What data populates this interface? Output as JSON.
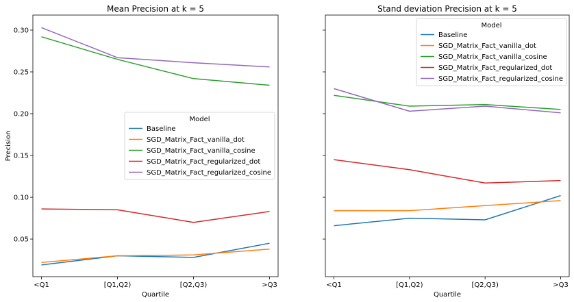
{
  "chart_data": [
    {
      "type": "line",
      "title": "Mean Precision at k = 5",
      "xlabel": "Quartile",
      "ylabel": "Precision",
      "categories": [
        "<Q1",
        "[Q1,Q2)",
        "[Q2,Q3)",
        ">Q3"
      ],
      "ylim": [
        0.005,
        0.318
      ],
      "yticks": [
        0.05,
        0.1,
        0.15,
        0.2,
        0.25,
        0.3
      ],
      "ytick_labels": [
        "0.05",
        "0.10",
        "0.15",
        "0.20",
        "0.25",
        "0.30"
      ],
      "grid": false,
      "legend": {
        "title": "Model",
        "placement": "center-right"
      },
      "series": [
        {
          "name": "Baseline",
          "color": "#1f77b4",
          "values": [
            0.019,
            0.03,
            0.028,
            0.045
          ]
        },
        {
          "name": "SGD_Matrix_Fact_vanilla_dot",
          "color": "#ff7f0e",
          "values": [
            0.022,
            0.03,
            0.031,
            0.038
          ]
        },
        {
          "name": "SGD_Matrix_Fact_vanilla_cosine",
          "color": "#2ca02c",
          "values": [
            0.292,
            0.265,
            0.242,
            0.234
          ]
        },
        {
          "name": "SGD_Matrix_Fact_regularized_dot",
          "color": "#d62728",
          "values": [
            0.086,
            0.085,
            0.07,
            0.083
          ]
        },
        {
          "name": "SGD_Matrix_Fact_regularized_cosine",
          "color": "#9467bd",
          "values": [
            0.303,
            0.267,
            0.261,
            0.256
          ]
        }
      ]
    },
    {
      "type": "line",
      "title": "Stand deviation Precision at k = 5",
      "xlabel": "Quartile",
      "ylabel": "",
      "categories": [
        "<Q1",
        "[Q1,Q2)",
        "[Q2,Q3)",
        ">Q3"
      ],
      "ylim": [
        0.005,
        0.318
      ],
      "yticks": [
        0.05,
        0.1,
        0.15,
        0.2,
        0.25,
        0.3
      ],
      "ytick_labels": [
        "",
        "",
        "",
        "",
        "",
        ""
      ],
      "grid": false,
      "legend": {
        "title": "Model",
        "placement": "top-right"
      },
      "series": [
        {
          "name": "Baseline",
          "color": "#1f77b4",
          "values": [
            0.066,
            0.075,
            0.073,
            0.102
          ]
        },
        {
          "name": "SGD_Matrix_Fact_vanilla_dot",
          "color": "#ff7f0e",
          "values": [
            0.084,
            0.084,
            0.09,
            0.096
          ]
        },
        {
          "name": "SGD_Matrix_Fact_vanilla_cosine",
          "color": "#2ca02c",
          "values": [
            0.222,
            0.209,
            0.211,
            0.205
          ]
        },
        {
          "name": "SGD_Matrix_Fact_regularized_dot",
          "color": "#d62728",
          "values": [
            0.145,
            0.133,
            0.117,
            0.12
          ]
        },
        {
          "name": "SGD_Matrix_Fact_regularized_cosine",
          "color": "#9467bd",
          "values": [
            0.23,
            0.203,
            0.209,
            0.201
          ]
        }
      ]
    }
  ]
}
